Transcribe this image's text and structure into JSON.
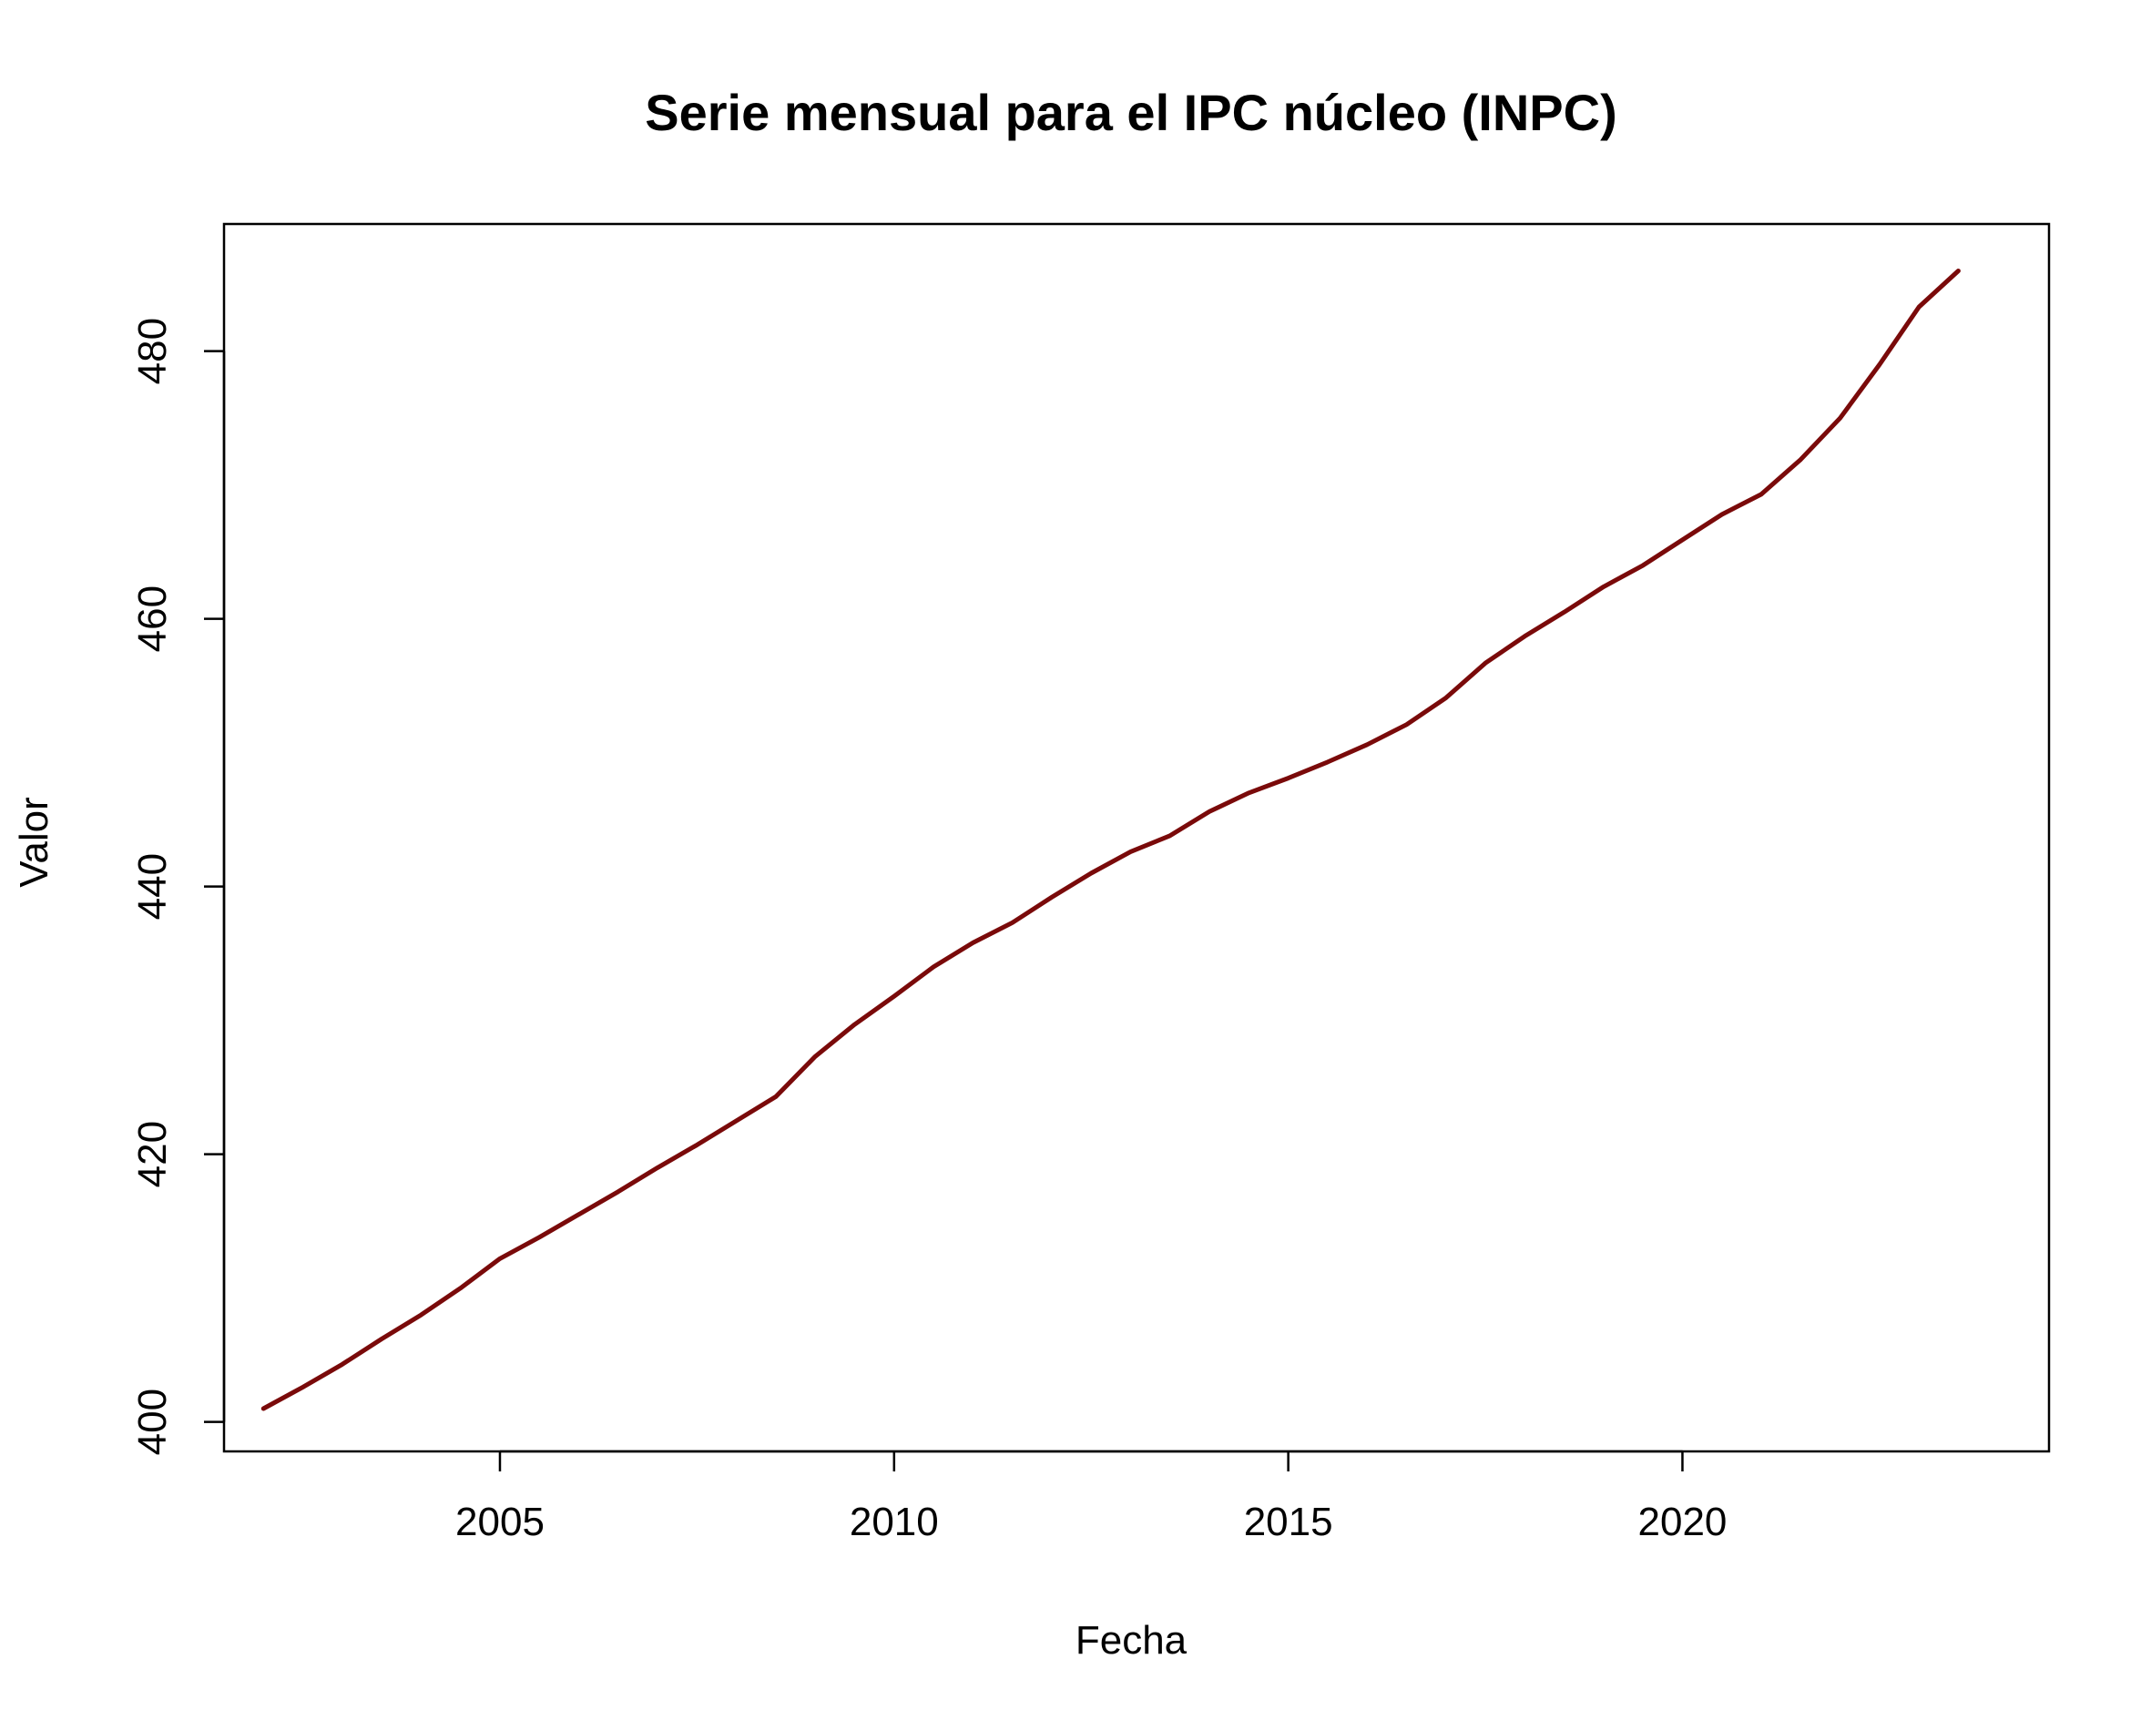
{
  "chart_data": {
    "type": "line",
    "title": "Serie mensual para el IPC núcleo (INPC)",
    "xlabel": "Fecha",
    "ylabel": "Valor",
    "xlim": [
      2001.5,
      2024.65
    ],
    "ylim": [
      397.8,
      489.5
    ],
    "x_ticks": [
      2005,
      2010,
      2015,
      2020
    ],
    "y_ticks": [
      400,
      420,
      440,
      460,
      480
    ],
    "grid": false,
    "legend": "none",
    "line_color": "#7a0a0a",
    "series": [
      {
        "points": [
          [
            2002.0,
            401.0
          ],
          [
            2002.5,
            402.6
          ],
          [
            2003.0,
            404.3
          ],
          [
            2003.5,
            406.2
          ],
          [
            2004.0,
            408.0
          ],
          [
            2004.5,
            410.0
          ],
          [
            2005.0,
            412.2
          ],
          [
            2005.5,
            413.8
          ],
          [
            2006.0,
            415.5
          ],
          [
            2006.5,
            417.2
          ],
          [
            2007.0,
            419.0
          ],
          [
            2007.5,
            420.7
          ],
          [
            2008.0,
            422.5
          ],
          [
            2008.5,
            424.3
          ],
          [
            2009.0,
            427.3
          ],
          [
            2009.5,
            429.7
          ],
          [
            2010.0,
            431.8
          ],
          [
            2010.5,
            434.0
          ],
          [
            2011.0,
            435.8
          ],
          [
            2011.5,
            437.3
          ],
          [
            2012.0,
            439.2
          ],
          [
            2012.5,
            441.0
          ],
          [
            2013.0,
            442.6
          ],
          [
            2013.5,
            443.8
          ],
          [
            2014.0,
            445.6
          ],
          [
            2014.5,
            447.0
          ],
          [
            2015.0,
            448.1
          ],
          [
            2015.5,
            449.3
          ],
          [
            2016.0,
            450.6
          ],
          [
            2016.5,
            452.1
          ],
          [
            2017.0,
            454.1
          ],
          [
            2017.5,
            456.7
          ],
          [
            2018.0,
            458.7
          ],
          [
            2018.5,
            460.5
          ],
          [
            2019.0,
            462.4
          ],
          [
            2019.5,
            464.0
          ],
          [
            2020.0,
            465.9
          ],
          [
            2020.5,
            467.8
          ],
          [
            2021.0,
            469.3
          ],
          [
            2021.5,
            471.9
          ],
          [
            2022.0,
            475.0
          ],
          [
            2022.5,
            479.0
          ],
          [
            2023.0,
            483.3
          ],
          [
            2023.5,
            486.0
          ]
        ]
      }
    ]
  }
}
